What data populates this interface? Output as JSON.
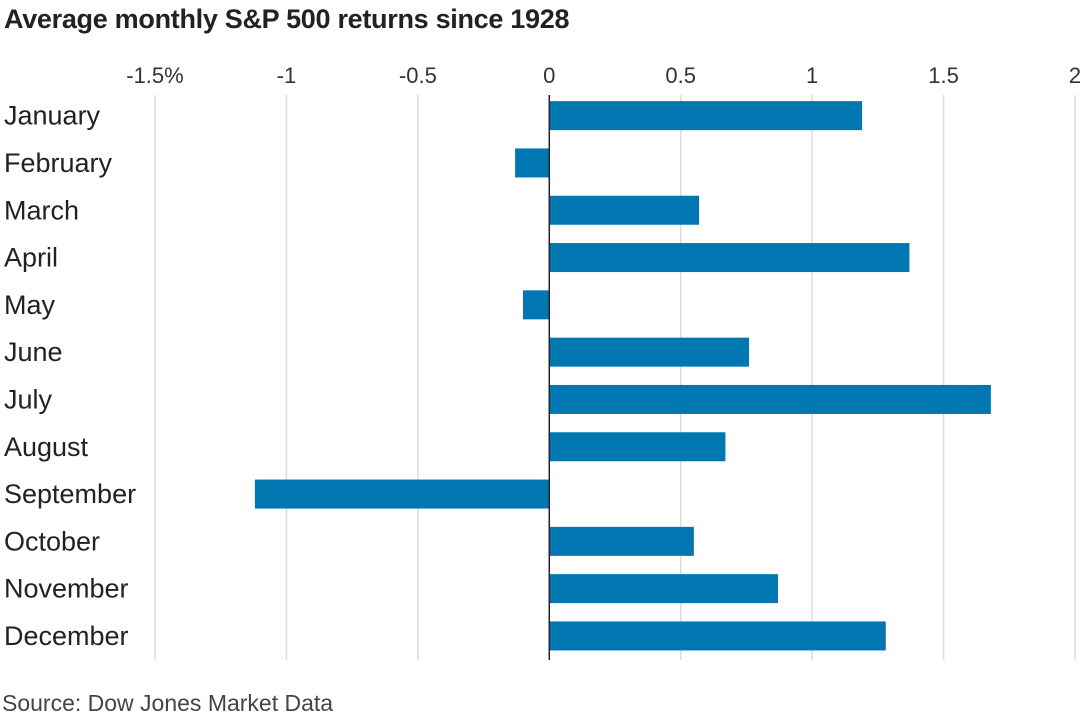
{
  "chart_data": {
    "type": "bar",
    "orientation": "horizontal",
    "title": "Average monthly S&P 500 returns since 1928",
    "source": "Source: Dow Jones Market Data",
    "categories": [
      "January",
      "February",
      "March",
      "April",
      "May",
      "June",
      "July",
      "August",
      "September",
      "October",
      "November",
      "December"
    ],
    "values": [
      1.19,
      -0.13,
      0.57,
      1.37,
      -0.1,
      0.76,
      1.68,
      0.67,
      -1.12,
      0.55,
      0.87,
      1.28
    ],
    "xlim": [
      -1.5,
      2
    ],
    "xticks": [
      -1.5,
      -1,
      -0.5,
      0,
      0.5,
      1,
      1.5,
      2
    ],
    "xtick_labels": [
      "-1.5%",
      "-1",
      "-0.5",
      "0",
      "0.5",
      "1",
      "1.5",
      "2"
    ],
    "xlabel": "",
    "ylabel": "",
    "grid": "vertical",
    "bar_color": "#0077b0"
  }
}
